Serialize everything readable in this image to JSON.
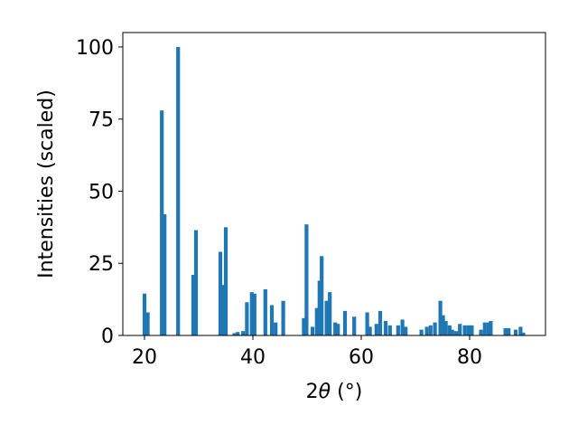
{
  "chart_data": {
    "type": "bar",
    "title": "",
    "xlabel_prefix": "2",
    "xlabel_symbol": "θ",
    "xlabel_suffix": " (°)",
    "ylabel": "Intensities (scaled)",
    "xlim": [
      16,
      94
    ],
    "ylim": [
      0,
      105
    ],
    "xticks": [
      20,
      40,
      60,
      80
    ],
    "yticks": [
      0,
      25,
      50,
      75,
      100
    ],
    "grid": false,
    "bar_color": "#1f77b4",
    "bar_width": 0.7,
    "x": [
      20.0,
      20.6,
      23.2,
      23.7,
      26.2,
      29.0,
      29.5,
      34.0,
      34.4,
      35.0,
      36.6,
      37.2,
      38.2,
      38.9,
      39.8,
      40.3,
      42.3,
      43.5,
      44.2,
      45.6,
      49.4,
      49.9,
      51.0,
      51.8,
      52.3,
      52.7,
      53.6,
      54.2,
      55.2,
      55.7,
      57.0,
      58.7,
      61.1,
      61.6,
      62.8,
      63.5,
      64.5,
      65.3,
      66.8,
      67.6,
      68.2,
      71.1,
      72.1,
      72.8,
      73.6,
      74.6,
      75.1,
      75.6,
      76.3,
      76.8,
      77.5,
      78.2,
      79.1,
      79.8,
      80.4,
      82.1,
      82.8,
      83.5,
      83.9,
      86.6,
      87.2,
      88.5,
      89.4,
      89.9
    ],
    "values": [
      14.5,
      8.0,
      78.0,
      42.0,
      100.0,
      21.0,
      36.5,
      29.0,
      17.5,
      37.5,
      0.8,
      1.2,
      1.5,
      11.5,
      15.0,
      14.5,
      16.0,
      10.5,
      4.5,
      12.0,
      6.0,
      38.5,
      3.0,
      9.5,
      19.0,
      27.5,
      12.0,
      15.0,
      4.5,
      4.0,
      8.5,
      6.5,
      8.0,
      3.0,
      4.0,
      8.5,
      5.0,
      3.5,
      3.5,
      5.5,
      3.0,
      2.0,
      3.0,
      3.5,
      4.5,
      12.0,
      7.0,
      5.0,
      3.5,
      2.0,
      1.5,
      4.0,
      3.5,
      3.5,
      3.5,
      2.0,
      4.5,
      4.5,
      5.0,
      2.5,
      2.5,
      2.0,
      3.0,
      1.0
    ]
  }
}
